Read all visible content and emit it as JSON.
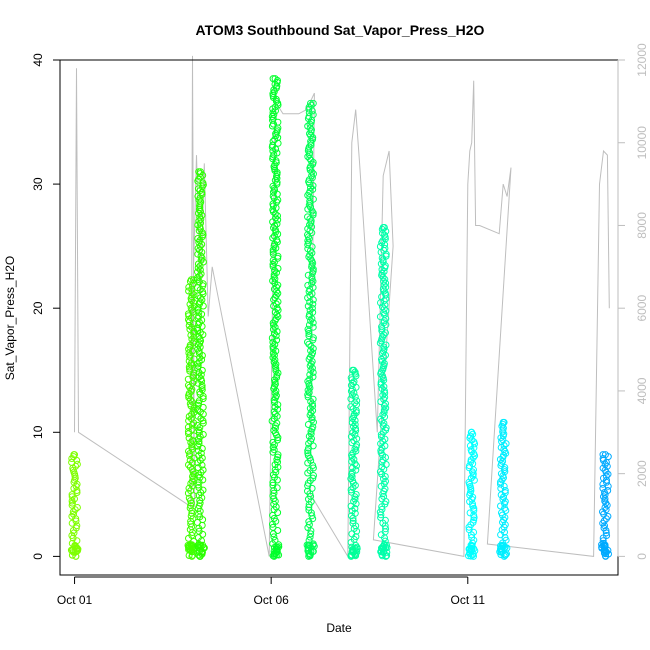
{
  "chart_data": {
    "type": "scatter",
    "title": "ATOM3 Southbound Sat_Vapor_Press_H2O",
    "xlabel": "Date",
    "ylabel": "Sat_Vapor_Press_H2O",
    "x_axis": {
      "unit": "date (October, day of month)",
      "range": [
        0.63,
        14.82
      ],
      "ticks": [
        {
          "value": 1,
          "label": "Oct 01"
        },
        {
          "value": 6,
          "label": "Oct 06"
        },
        {
          "value": 11,
          "label": "Oct 11"
        }
      ]
    },
    "y_axis": {
      "range": [
        -1.5,
        40
      ],
      "ticks": [
        0,
        10,
        20,
        30,
        40
      ]
    },
    "y2_axis": {
      "range": [
        -450,
        12000
      ],
      "ticks": [
        0,
        2000,
        4000,
        6000,
        8000,
        10000,
        12000
      ],
      "color": "#bebebe"
    },
    "grid": false,
    "clusters": [
      {
        "x": 1.0,
        "ymax": 8.2,
        "color": "#7fff00"
      },
      {
        "x": 3.97,
        "ymax": 22.3,
        "color": "#40ff00"
      },
      {
        "x": 4.2,
        "ymax": 31.0,
        "color": "#2aff00"
      },
      {
        "x": 6.1,
        "ymax": 38.5,
        "color": "#00ff2a"
      },
      {
        "x": 7.0,
        "ymax": 36.5,
        "color": "#00ff55"
      },
      {
        "x": 8.1,
        "ymax": 15.0,
        "color": "#00ff99"
      },
      {
        "x": 8.85,
        "ymax": 26.5,
        "color": "#00ffaa"
      },
      {
        "x": 11.1,
        "ymax": 10.0,
        "color": "#00ffff"
      },
      {
        "x": 11.9,
        "ymax": 10.8,
        "color": "#00eeff"
      },
      {
        "x": 14.5,
        "ymax": 8.2,
        "color": "#00aaff"
      }
    ],
    "series": [
      {
        "color": "#bebebe",
        "axis": "right",
        "points": [
          [
            1.0,
            3000
          ],
          [
            1.05,
            11800
          ],
          [
            1.1,
            3000
          ],
          [
            3.96,
            1200
          ],
          [
            4.0,
            12100
          ],
          [
            4.05,
            1200
          ],
          [
            4.0,
            6000
          ],
          [
            4.1,
            9700
          ],
          [
            4.2,
            6200
          ],
          [
            4.3,
            9500
          ],
          [
            4.4,
            5800
          ],
          [
            4.5,
            7000
          ],
          [
            5.95,
            0
          ],
          [
            6.1,
            11000
          ],
          [
            6.3,
            10700
          ],
          [
            6.5,
            10700
          ],
          [
            6.7,
            10700
          ],
          [
            6.9,
            10800
          ],
          [
            7.1,
            11200
          ],
          [
            7.0,
            1500
          ],
          [
            7.95,
            0
          ],
          [
            8.05,
            10000
          ],
          [
            8.15,
            10800
          ],
          [
            8.25,
            9500
          ],
          [
            8.7,
            3000
          ],
          [
            8.85,
            9200
          ],
          [
            9.0,
            9800
          ],
          [
            9.1,
            7500
          ],
          [
            8.6,
            400
          ],
          [
            10.9,
            0
          ],
          [
            11.0,
            9000
          ],
          [
            11.05,
            9800
          ],
          [
            11.1,
            10000
          ],
          [
            11.15,
            11500
          ],
          [
            11.2,
            8000
          ],
          [
            11.3,
            8000
          ],
          [
            11.8,
            7800
          ],
          [
            11.9,
            9000
          ],
          [
            12.0,
            8700
          ],
          [
            12.1,
            9400
          ],
          [
            11.5,
            300
          ],
          [
            14.2,
            0
          ],
          [
            14.35,
            9000
          ],
          [
            14.45,
            9800
          ],
          [
            14.55,
            9700
          ],
          [
            14.6,
            6000
          ]
        ]
      }
    ]
  }
}
